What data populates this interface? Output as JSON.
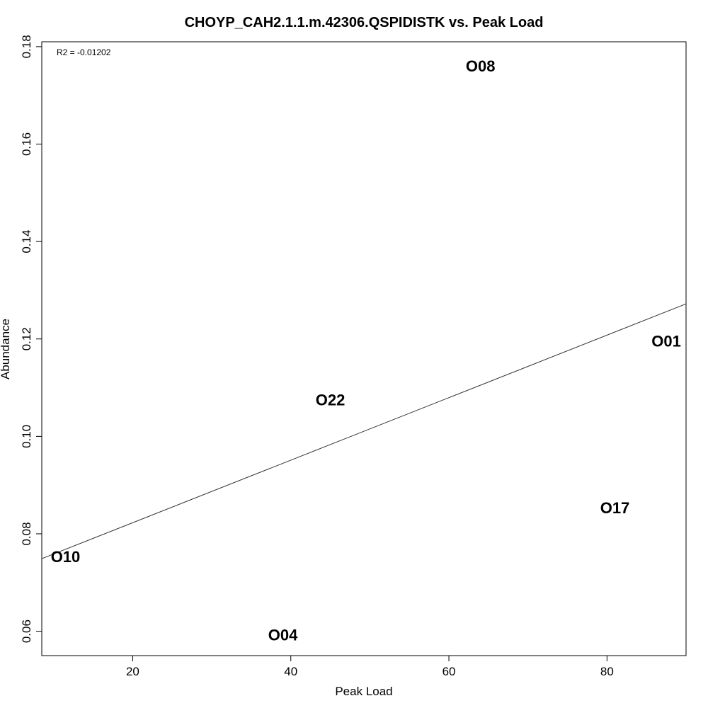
{
  "chart_data": {
    "type": "scatter",
    "title": "CHOYP_CAH2.1.1.m.42306.QSPIDISTK vs. Peak Load",
    "xlabel": "Peak Load",
    "ylabel": "Abundance",
    "annotation": "R2 = -0.01202",
    "xlim": [
      8.5,
      90
    ],
    "ylim": [
      0.055,
      0.181
    ],
    "x_ticks": [
      20,
      40,
      60,
      80
    ],
    "y_ticks": [
      0.06,
      0.08,
      0.1,
      0.12,
      0.14,
      0.16,
      0.18
    ],
    "y_tick_labels": [
      "0.06",
      "0.08",
      "0.10",
      "0.12",
      "0.14",
      "0.16",
      "0.18"
    ],
    "points": [
      {
        "label": "O08",
        "x": 64,
        "y": 0.176
      },
      {
        "label": "O01",
        "x": 87.5,
        "y": 0.1195
      },
      {
        "label": "O22",
        "x": 45,
        "y": 0.1075
      },
      {
        "label": "O17",
        "x": 81,
        "y": 0.0853
      },
      {
        "label": "O10",
        "x": 11.5,
        "y": 0.0753
      },
      {
        "label": "O04",
        "x": 39,
        "y": 0.0592
      }
    ],
    "fit_line": {
      "x": [
        8.5,
        90
      ],
      "y": [
        0.0749,
        0.1272
      ]
    },
    "grid": false,
    "legend": "none"
  }
}
